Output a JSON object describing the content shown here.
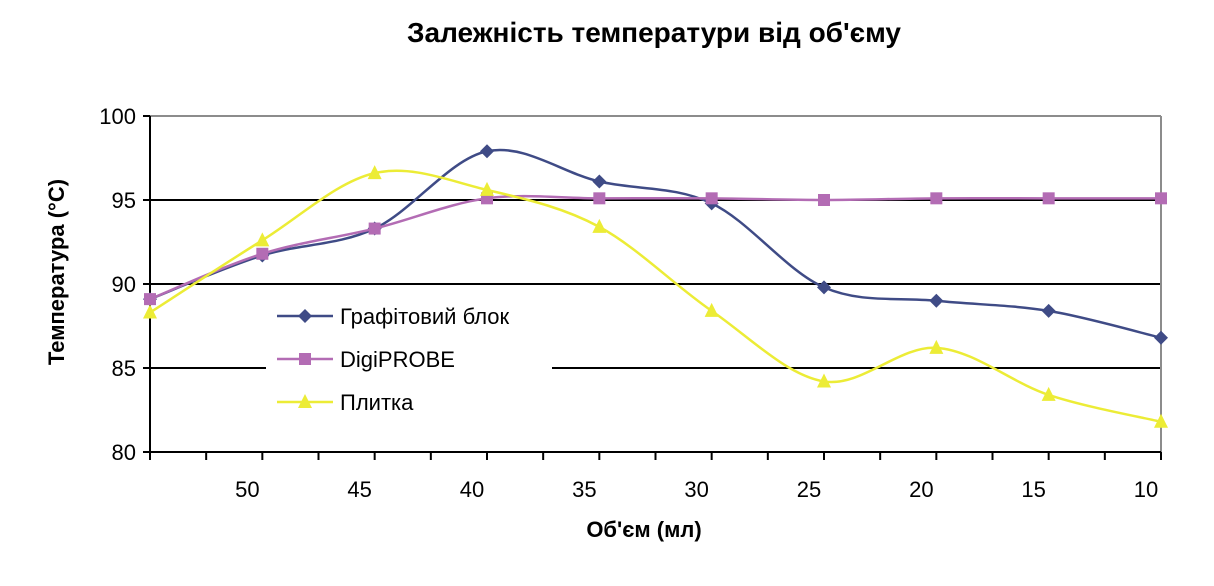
{
  "chart_data": {
    "type": "line",
    "title": "Залежність температури від об'єму",
    "xlabel": "Об'єм (мл)",
    "ylabel": "Температура (°C)",
    "x_reversed": true,
    "xlim": [
      55,
      10
    ],
    "ylim": [
      80,
      100
    ],
    "x_ticks": [
      50,
      45,
      40,
      35,
      30,
      25,
      20,
      15,
      10
    ],
    "y_ticks": [
      80,
      85,
      90,
      95,
      100
    ],
    "grid": "horizontal major lines",
    "legend_position": "inside-left",
    "x": [
      55,
      50,
      45,
      40,
      35,
      30,
      25,
      20,
      15,
      10
    ],
    "series": [
      {
        "name": "Графітовий блок",
        "marker": "diamond",
        "color": "#3f4b86",
        "values": [
          89.1,
          91.7,
          93.3,
          97.9,
          96.1,
          94.8,
          89.8,
          89.0,
          88.4,
          86.8
        ]
      },
      {
        "name": "DigiPROBE",
        "marker": "square",
        "color": "#b36cb4",
        "values": [
          89.1,
          91.8,
          93.3,
          95.1,
          95.1,
          95.1,
          95.0,
          95.1,
          95.1,
          95.1
        ]
      },
      {
        "name": "Плитка",
        "marker": "triangle",
        "color": "#ecec36",
        "values": [
          88.3,
          92.6,
          96.6,
          95.6,
          93.4,
          88.4,
          84.2,
          86.2,
          83.4,
          81.8
        ]
      }
    ]
  }
}
